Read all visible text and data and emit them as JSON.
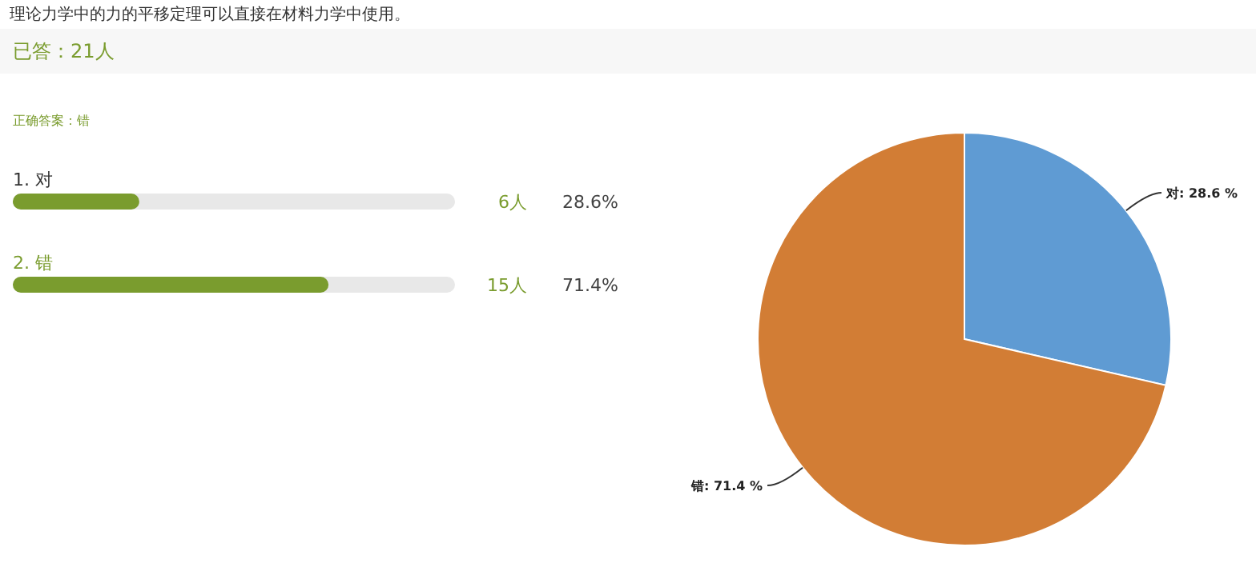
{
  "chart_data": [
    {
      "type": "bar",
      "orientation": "horizontal",
      "title": "理论力学中的力的平移定理可以直接在材料力学中使用。",
      "subtitle": "已答：21人",
      "categories": [
        "1. 对",
        "2. 错"
      ],
      "xlim": [
        0,
        100
      ],
      "color": "#7a9c2e",
      "values": [
        28.6,
        71.4
      ],
      "value_labels": [
        "28.6%",
        "71.4%"
      ],
      "annotations": [
        "正确答案：错",
        "6人",
        "15人"
      ]
    },
    {
      "type": "pie",
      "categories": [
        "对",
        "错"
      ],
      "values": [
        28.6,
        71.4
      ],
      "colors": [
        "#5f9bd3",
        "#d27d35"
      ],
      "value_labels": [
        ": 28.6 %",
        ": 71.4 %"
      ]
    }
  ]
}
